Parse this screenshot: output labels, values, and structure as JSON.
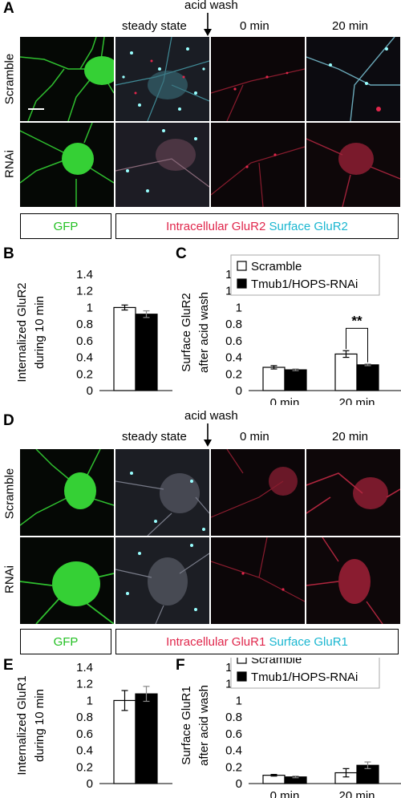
{
  "panelA": {
    "letter": "A",
    "acid_wash": "acid wash",
    "columns": [
      "steady state",
      "0 min",
      "20 min"
    ],
    "rows": [
      "Scramble",
      "RNAi"
    ],
    "legend": {
      "gfp": "GFP",
      "intracellular": "Intracellular GluR2",
      "surface": "Surface GluR2"
    }
  },
  "panelD": {
    "letter": "D",
    "acid_wash": "acid wash",
    "columns": [
      "steady state",
      "0 min",
      "20 min"
    ],
    "rows": [
      "Scramble",
      "RNAi"
    ],
    "legend": {
      "gfp": "GFP",
      "intracellular": "Intracellular GluR1",
      "surface": "Surface GluR1"
    }
  },
  "colors": {
    "gfp": "#22c022",
    "intracellular": "#e0264b",
    "surface": "#19b6d0"
  },
  "chart_data": [
    {
      "id": "B",
      "letter": "B",
      "type": "bar",
      "ylabel_lines": [
        "Internalized GluR2",
        "during 10 min"
      ],
      "ylim": [
        0,
        1.4
      ],
      "yticks": [
        "1.4",
        "1.2",
        "1",
        "0.8",
        "0.6",
        "0.4",
        "0.2",
        "0"
      ],
      "series": [
        {
          "name": "Scramble",
          "values": [
            1.0
          ],
          "errors": [
            0.03
          ],
          "color": "#ffffff"
        },
        {
          "name": "Tmub1/HOPS-RNAi",
          "values": [
            0.92
          ],
          "errors": [
            0.04
          ],
          "color": "#000000"
        }
      ]
    },
    {
      "id": "C",
      "letter": "C",
      "type": "bar",
      "ylabel_lines": [
        "Surface GluR2",
        "after acid wash"
      ],
      "ylim": [
        0,
        1.4
      ],
      "yticks": [
        "1.4",
        "1.2",
        "1",
        "0.8",
        "0.6",
        "0.4",
        "0.2",
        "0"
      ],
      "categories": [
        "0 min",
        "20 min"
      ],
      "legend": [
        "Scramble",
        "Tmub1/HOPS-RNAi"
      ],
      "series": [
        {
          "name": "Scramble",
          "values": [
            0.28,
            0.44
          ],
          "errors": [
            0.02,
            0.04
          ],
          "color": "#ffffff"
        },
        {
          "name": "Tmub1/HOPS-RNAi",
          "values": [
            0.25,
            0.31
          ],
          "errors": [
            0.01,
            0.01
          ],
          "color": "#000000"
        }
      ],
      "annotation": "**"
    },
    {
      "id": "E",
      "letter": "E",
      "type": "bar",
      "ylabel_lines": [
        "Internalized GluR1",
        "during 10 min"
      ],
      "ylim": [
        0,
        1.4
      ],
      "yticks": [
        "1.4",
        "1.2",
        "1",
        "0.8",
        "0.6",
        "0.4",
        "0.2",
        "0"
      ],
      "series": [
        {
          "name": "Scramble",
          "values": [
            1.0
          ],
          "errors": [
            0.12
          ],
          "color": "#ffffff"
        },
        {
          "name": "Tmub1/HOPS-RNAi",
          "values": [
            1.08
          ],
          "errors": [
            0.09
          ],
          "color": "#000000"
        }
      ]
    },
    {
      "id": "F",
      "letter": "F",
      "type": "bar",
      "ylabel_lines": [
        "Surface GluR1",
        "after acid wash"
      ],
      "ylim": [
        0,
        1.4
      ],
      "yticks": [
        "1.4",
        "1.2",
        "1",
        "0.8",
        "0.6",
        "0.4",
        "0.2",
        "0"
      ],
      "categories": [
        "0 min",
        "20 min"
      ],
      "legend": [
        "Scramble",
        "Tmub1/HOPS-RNAi"
      ],
      "series": [
        {
          "name": "Scramble",
          "values": [
            0.1,
            0.13
          ],
          "errors": [
            0.01,
            0.05
          ],
          "color": "#ffffff"
        },
        {
          "name": "Tmub1/HOPS-RNAi",
          "values": [
            0.08,
            0.22
          ],
          "errors": [
            0.01,
            0.04
          ],
          "color": "#000000"
        }
      ]
    }
  ]
}
